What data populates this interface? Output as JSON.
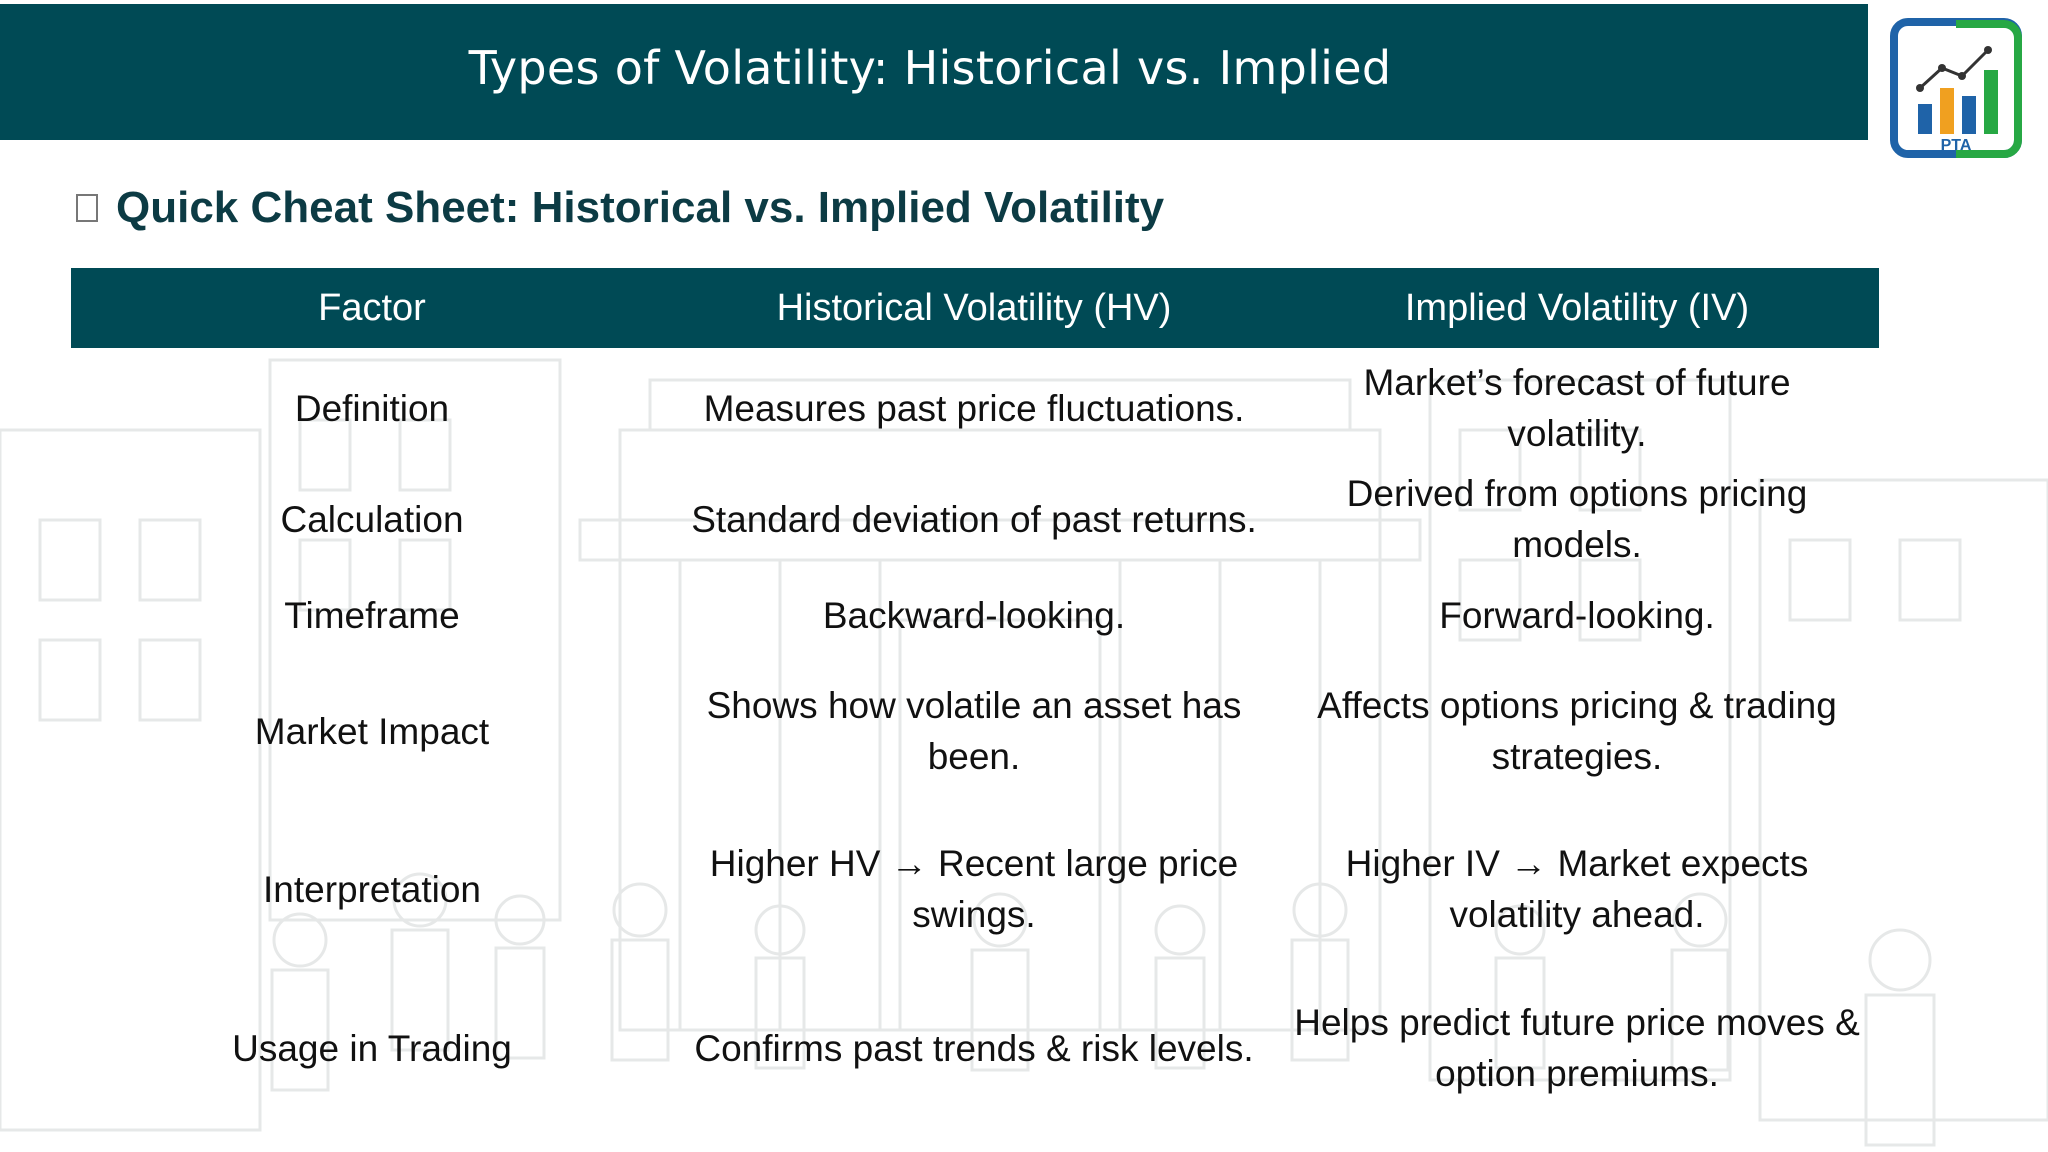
{
  "header": {
    "title": "Types of Volatility: Historical vs. Implied"
  },
  "logo": {
    "icon": "pta-chart-logo",
    "text": "PTA"
  },
  "section": {
    "checkbox_icon": "empty-checkbox-icon",
    "title": "Quick Cheat Sheet: Historical vs. Implied Volatility"
  },
  "table": {
    "headers": [
      "Factor",
      "Historical Volatility (HV)",
      "Implied Volatility (IV)"
    ],
    "rows": [
      [
        "Definition",
        "Measures past price fluctuations.",
        "Market’s forecast of future volatility."
      ],
      [
        "Calculation",
        "Standard deviation of past returns.",
        "Derived from options pricing models."
      ],
      [
        "Timeframe",
        "Backward-looking.",
        "Forward-looking."
      ],
      [
        "Market Impact",
        "Shows how volatile an asset has been.",
        "Affects options pricing & trading strategies."
      ],
      [
        "Interpretation",
        "Higher HV → Recent large price swings.",
        "Higher IV → Market expects volatility ahead."
      ],
      [
        "Usage in Trading",
        "Confirms past trends & risk levels.",
        "Helps predict future price moves & option premiums."
      ]
    ]
  },
  "colors": {
    "header_bg": "#004a55",
    "subtitle_text": "#0c3b44",
    "logo_blue": "#1f63a8",
    "logo_green": "#27a844",
    "logo_orange": "#f0a020"
  }
}
